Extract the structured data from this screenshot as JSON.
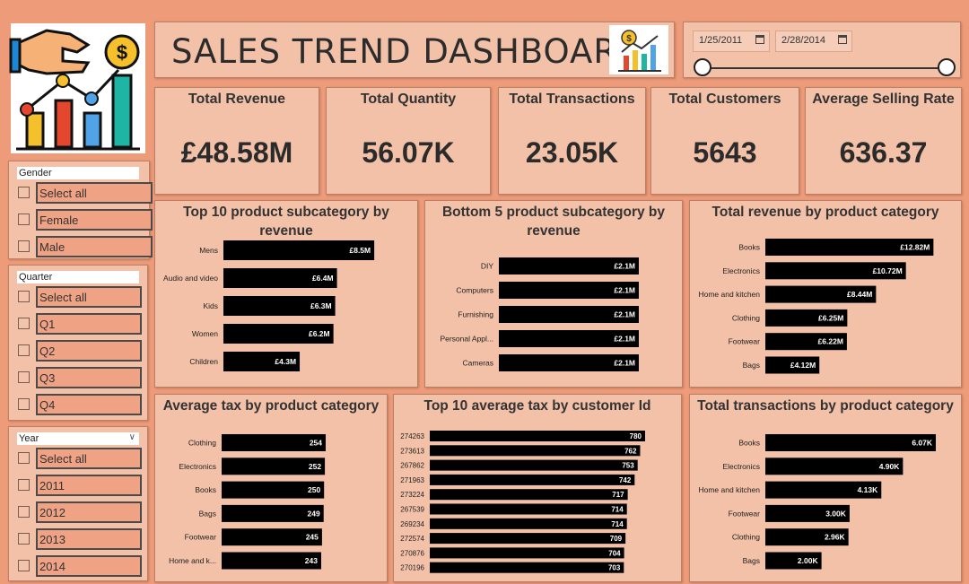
{
  "header": {
    "title": "SALES TREND DASHBOARD"
  },
  "date_range": {
    "start": "1/25/2011",
    "end": "2/28/2014"
  },
  "kpis": [
    {
      "label": "Total Revenue",
      "value": "£48.58M"
    },
    {
      "label": "Total Quantity",
      "value": "56.07K"
    },
    {
      "label": "Total Transactions",
      "value": "23.05K"
    },
    {
      "label": "Total Customers",
      "value": "5643"
    },
    {
      "label": "Average Selling Rate",
      "value": "636.37"
    }
  ],
  "slicers": {
    "gender": {
      "title": "Gender",
      "options": [
        "Select all",
        "Female",
        "Male"
      ]
    },
    "quarter": {
      "title": "Quarter",
      "options": [
        "Select all",
        "Q1",
        "Q2",
        "Q3",
        "Q4"
      ]
    },
    "year": {
      "title": "Year",
      "options": [
        "Select all",
        "2011",
        "2012",
        "2013",
        "2014"
      ]
    }
  },
  "colors": {
    "background": "#ED9B79",
    "panel": "#F3C1A8",
    "bar": "#000000",
    "bar_label": "#ffffff"
  },
  "chart_data": [
    {
      "type": "bar",
      "orientation": "horizontal",
      "title": "Top 10 product subcategory by revenue",
      "categories": [
        "Mens",
        "Audio and video",
        "Kids",
        "Women",
        "Children"
      ],
      "values": [
        8.5,
        6.4,
        6.3,
        6.2,
        4.3
      ],
      "labels": [
        "£8.5M",
        "£6.4M",
        "£6.3M",
        "£6.2M",
        "£4.3M"
      ],
      "unit": "£M",
      "xlim": [
        0,
        9
      ]
    },
    {
      "type": "bar",
      "orientation": "horizontal",
      "title": "Bottom 5 product subcategory by revenue",
      "categories": [
        "DIY",
        "Computers",
        "Furnishing",
        "Personal Appl...",
        "Cameras"
      ],
      "values": [
        2.1,
        2.1,
        2.1,
        2.1,
        2.1
      ],
      "labels": [
        "£2.1M",
        "£2.1M",
        "£2.1M",
        "£2.1M",
        "£2.1M"
      ],
      "unit": "£M",
      "xlim": [
        0,
        2.1
      ]
    },
    {
      "type": "bar",
      "orientation": "horizontal",
      "title": "Total revenue by product category",
      "categories": [
        "Books",
        "Electronics",
        "Home and kitchen",
        "Clothing",
        "Footwear",
        "Bags"
      ],
      "values": [
        12.82,
        10.72,
        8.44,
        6.25,
        6.22,
        4.12
      ],
      "labels": [
        "£12.82M",
        "£10.72M",
        "£8.44M",
        "£6.25M",
        "£6.22M",
        "£4.12M"
      ],
      "unit": "£M",
      "xlim": [
        0,
        13
      ]
    },
    {
      "type": "bar",
      "orientation": "horizontal",
      "title": "Average tax by product category",
      "categories": [
        "Clothing",
        "Electronics",
        "Books",
        "Bags",
        "Footwear",
        "Home and k..."
      ],
      "values": [
        254,
        252,
        250,
        249,
        245,
        243
      ],
      "labels": [
        "254",
        "252",
        "250",
        "249",
        "245",
        "243"
      ],
      "xlim": [
        0,
        254
      ]
    },
    {
      "type": "bar",
      "orientation": "horizontal",
      "title": "Top 10 average tax by customer Id",
      "categories": [
        "274263",
        "273613",
        "267862",
        "271963",
        "273224",
        "267539",
        "269234",
        "272574",
        "270876",
        "270196"
      ],
      "values": [
        780,
        762,
        753,
        742,
        717,
        714,
        714,
        709,
        704,
        703
      ],
      "labels": [
        "780",
        "762",
        "753",
        "742",
        "717",
        "714",
        "714",
        "709",
        "704",
        "703"
      ],
      "xlim": [
        0,
        780
      ]
    },
    {
      "type": "bar",
      "orientation": "horizontal",
      "title": "Total transactions by product category",
      "categories": [
        "Books",
        "Electronics",
        "Home and kitchen",
        "Footwear",
        "Clothing",
        "Bags"
      ],
      "values": [
        6.07,
        4.9,
        4.13,
        3.0,
        2.96,
        2.0
      ],
      "labels": [
        "6.07K",
        "4.90K",
        "4.13K",
        "3.00K",
        "2.96K",
        "2.00K"
      ],
      "unit": "K",
      "xlim": [
        0,
        6.07
      ]
    }
  ]
}
